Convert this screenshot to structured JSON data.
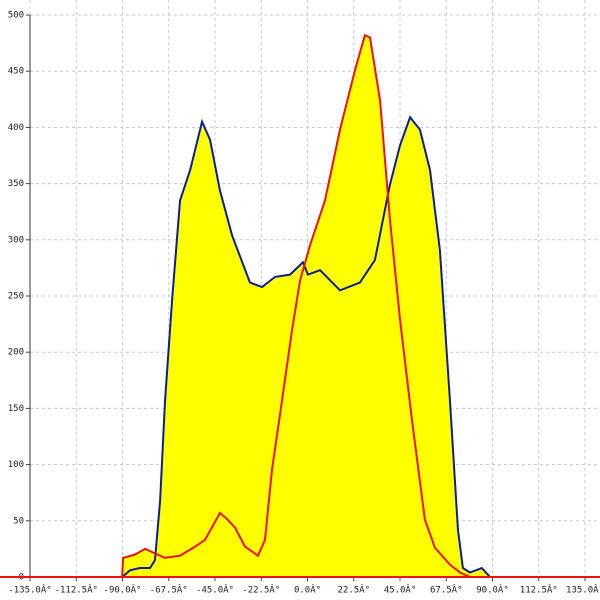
{
  "chart_data": {
    "type": "area",
    "xlim": [
      -135,
      135
    ],
    "ylim": [
      0,
      500
    ],
    "xticks": [
      {
        "value": -135,
        "label": "-135.0Â°"
      },
      {
        "value": -112.5,
        "label": "-112.5Â°"
      },
      {
        "value": -90,
        "label": "-90.0Â°"
      },
      {
        "value": -67.5,
        "label": "-67.5Â°"
      },
      {
        "value": -45,
        "label": "-45.0Â°"
      },
      {
        "value": -22.5,
        "label": "-22.5Â°"
      },
      {
        "value": 0,
        "label": "0.0Â°"
      },
      {
        "value": 22.5,
        "label": "22.5Â°"
      },
      {
        "value": 45,
        "label": "45.0Â°"
      },
      {
        "value": 67.5,
        "label": "67.5Â°"
      },
      {
        "value": 90,
        "label": "90.0Â°"
      },
      {
        "value": 112.5,
        "label": "112.5Â°"
      },
      {
        "value": 135,
        "label": "135.0Â°"
      }
    ],
    "yticks": [
      0,
      50,
      100,
      150,
      200,
      250,
      300,
      350,
      400,
      450,
      500
    ],
    "grid": true,
    "fill": "#ffff00",
    "series": [
      {
        "color": "#0a1e9c",
        "x": [
          -90.2,
          -86.3,
          -81.5,
          -76.6,
          -74.2,
          -71.7,
          -69.3,
          -65.9,
          -62,
          -57.1,
          -51.3,
          -47.4,
          -42.6,
          -36.7,
          -28,
          -22.1,
          -15.8,
          -8.5,
          -2.2,
          0.2,
          6.1,
          15.8,
          25.5,
          32.8,
          40.1,
          45,
          49.9,
          54.7,
          59.6,
          64.4,
          69.3,
          73.2,
          75.6,
          79,
          84.8,
          88.8
        ],
        "values": [
          0,
          6,
          8,
          8,
          15,
          68,
          157,
          246,
          335,
          362,
          405,
          389,
          344,
          304,
          262,
          258,
          267,
          269,
          280,
          269,
          273,
          255,
          262,
          282,
          349,
          384,
          409,
          398,
          362,
          291,
          157,
          42,
          8,
          4,
          8,
          0
        ]
      },
      {
        "color": "#ee1111",
        "x": [
          -90.2,
          -89.7,
          -83.9,
          -79,
          -74.2,
          -69.3,
          -62,
          -54.7,
          -49.9,
          -46.5,
          -42.6,
          -38.8,
          -35.3,
          -30.4,
          -24.1,
          -20.7,
          -17.3,
          -12.4,
          -7.5,
          -3.6,
          1.2,
          8.5,
          15.8,
          23.1,
          27.9,
          30.4,
          35.3,
          40.1,
          45,
          50.8,
          57.1,
          62,
          69.3,
          74.2,
          79
        ],
        "values": [
          0,
          17,
          20,
          25,
          21,
          17,
          19,
          27,
          33,
          44,
          57,
          51,
          44,
          27,
          19,
          33,
          95,
          157,
          220,
          264,
          295,
          335,
          398,
          451,
          482,
          480,
          424,
          318,
          229,
          140,
          51,
          26,
          11,
          4,
          0
        ]
      }
    ]
  }
}
